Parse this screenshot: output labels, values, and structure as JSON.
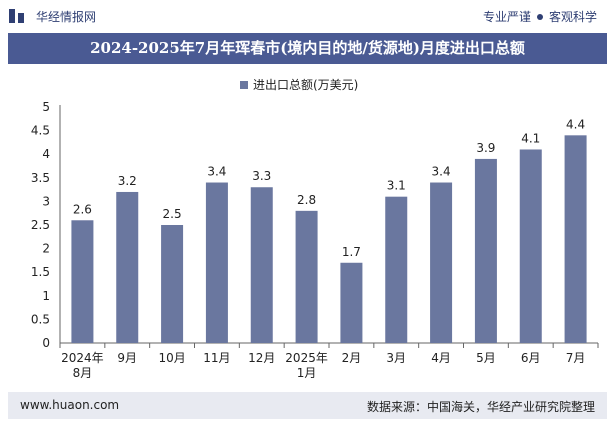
{
  "header": {
    "brand": "华经情报网",
    "tagline_left": "专业严谨",
    "tagline_right": "客观科学"
  },
  "chart_data": {
    "type": "bar",
    "title": "2024-2025年7月年珲春市(境内目的地/货源地)月度进出口总额",
    "legend": "进出口总额(万美元)",
    "categories": [
      [
        "2024年",
        "8月"
      ],
      [
        "9月"
      ],
      [
        "10月"
      ],
      [
        "11月"
      ],
      [
        "12月"
      ],
      [
        "2025年",
        "1月"
      ],
      [
        "2月"
      ],
      [
        "3月"
      ],
      [
        "4月"
      ],
      [
        "5月"
      ],
      [
        "6月"
      ],
      [
        "7月"
      ]
    ],
    "series": [
      {
        "name": "进出口总额(万美元)",
        "values": [
          2.6,
          3.2,
          2.5,
          3.4,
          3.3,
          2.8,
          1.7,
          3.1,
          3.4,
          3.9,
          4.1,
          4.4
        ]
      }
    ],
    "yticks": [
      "0",
      "0.5",
      "1",
      "1.5",
      "2",
      "2.5",
      "3",
      "3.5",
      "4",
      "4.5",
      "5"
    ],
    "ylim": [
      0,
      5
    ],
    "bar_color": "#6a779f"
  },
  "footer": {
    "site": "www.huaon.com",
    "source": "数据来源：中国海关，华经产业研究院整理"
  }
}
